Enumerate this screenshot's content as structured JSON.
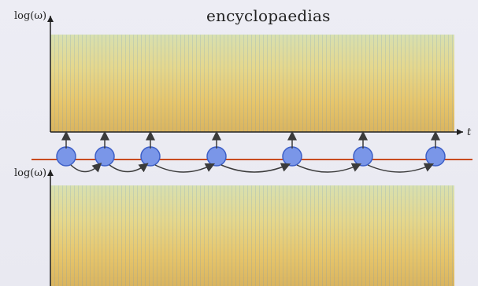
{
  "slide": {
    "title": "encyclopaedias",
    "top_axis_label": "log(ω)",
    "bottom_axis_label": "log(ω)",
    "time_axis_label": "t"
  },
  "colors": {
    "background": "#ededf4",
    "timeline": "#c84a1e",
    "node_fill": "#7a96e8",
    "node_stroke": "#3d5fc7",
    "arrow": "#3b3b3b",
    "spec_yellow": "#e4d36a",
    "spec_orange": "#cf6b1f",
    "spec_red": "#a52a12",
    "spec_cyan": "#6ec3d4",
    "spec_blue": "#3a4fc0"
  },
  "nodes": [
    "n1",
    "n2",
    "n3",
    "n4",
    "n5",
    "n6",
    "n7"
  ]
}
